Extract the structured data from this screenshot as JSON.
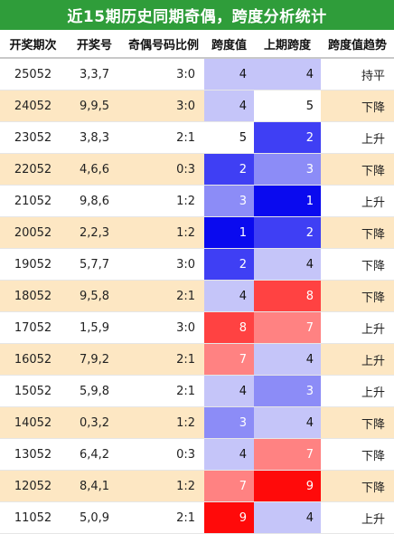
{
  "title": "近15期历史同期奇偶，跨度分析统计",
  "headers": [
    "开奖期次",
    "开奖号",
    "奇偶号码比例",
    "跨度值",
    "上期跨度",
    "跨度值趋势"
  ],
  "colors": {
    "title_bg": "#2f9d3a",
    "row_alt": "#fde7c3",
    "span_1": "#0a0aef",
    "span_2": "#3f3ff4",
    "span_3": "#8c8cf7",
    "span_4": "#c5c5f9",
    "span_5": "#ffffff",
    "span_7": "#ff8282",
    "span_8": "#ff4242",
    "span_9": "#ff0a0a"
  },
  "rows": [
    {
      "issue": "25052",
      "nums": "3,3,7",
      "ratio": "3:0",
      "span": "4",
      "prev": "4",
      "trend": "持平"
    },
    {
      "issue": "24052",
      "nums": "9,9,5",
      "ratio": "3:0",
      "span": "4",
      "prev": "5",
      "trend": "下降"
    },
    {
      "issue": "23052",
      "nums": "3,8,3",
      "ratio": "2:1",
      "span": "5",
      "prev": "2",
      "trend": "上升"
    },
    {
      "issue": "22052",
      "nums": "4,6,6",
      "ratio": "0:3",
      "span": "2",
      "prev": "3",
      "trend": "下降"
    },
    {
      "issue": "21052",
      "nums": "9,8,6",
      "ratio": "1:2",
      "span": "3",
      "prev": "1",
      "trend": "上升"
    },
    {
      "issue": "20052",
      "nums": "2,2,3",
      "ratio": "1:2",
      "span": "1",
      "prev": "2",
      "trend": "下降"
    },
    {
      "issue": "19052",
      "nums": "5,7,7",
      "ratio": "3:0",
      "span": "2",
      "prev": "4",
      "trend": "下降"
    },
    {
      "issue": "18052",
      "nums": "9,5,8",
      "ratio": "2:1",
      "span": "4",
      "prev": "8",
      "trend": "下降"
    },
    {
      "issue": "17052",
      "nums": "1,5,9",
      "ratio": "3:0",
      "span": "8",
      "prev": "7",
      "trend": "上升"
    },
    {
      "issue": "16052",
      "nums": "7,9,2",
      "ratio": "2:1",
      "span": "7",
      "prev": "4",
      "trend": "上升"
    },
    {
      "issue": "15052",
      "nums": "5,9,8",
      "ratio": "2:1",
      "span": "4",
      "prev": "3",
      "trend": "上升"
    },
    {
      "issue": "14052",
      "nums": "0,3,2",
      "ratio": "1:2",
      "span": "3",
      "prev": "4",
      "trend": "下降"
    },
    {
      "issue": "13052",
      "nums": "6,4,2",
      "ratio": "0:3",
      "span": "4",
      "prev": "7",
      "trend": "下降"
    },
    {
      "issue": "12052",
      "nums": "8,4,1",
      "ratio": "1:2",
      "span": "7",
      "prev": "9",
      "trend": "下降"
    },
    {
      "issue": "11052",
      "nums": "5,0,9",
      "ratio": "2:1",
      "span": "9",
      "prev": "4",
      "trend": "上升"
    }
  ]
}
